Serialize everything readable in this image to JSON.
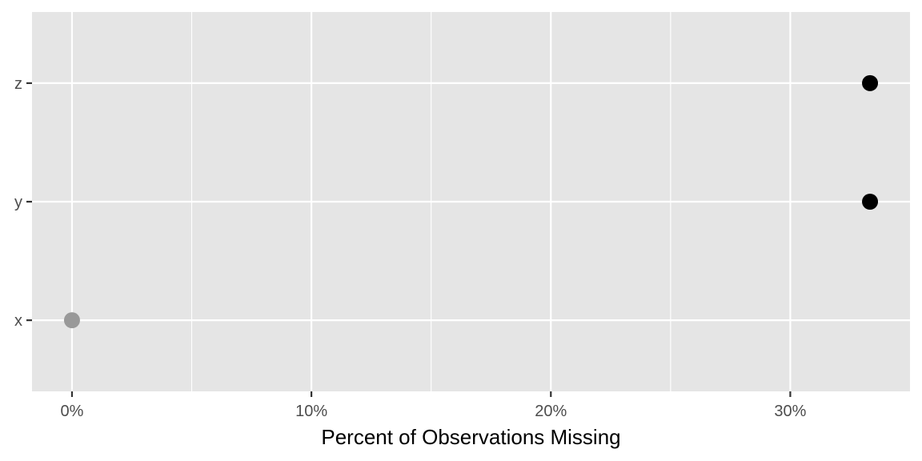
{
  "chart_data": {
    "type": "scatter",
    "title": "",
    "xlabel": "Percent of Observations Missing",
    "ylabel": "",
    "x_ticks": [
      0,
      10,
      20,
      30
    ],
    "x_tick_labels": [
      "0%",
      "10%",
      "20%",
      "30%"
    ],
    "xlim": [
      -1.67,
      35
    ],
    "categories": [
      "x",
      "y",
      "z"
    ],
    "grid": true,
    "legend": "none",
    "points": [
      {
        "category": "x",
        "value": 0,
        "color": "#999999"
      },
      {
        "category": "y",
        "value": 33.33,
        "color": "#000000"
      },
      {
        "category": "z",
        "value": 33.33,
        "color": "#000000"
      }
    ],
    "colors": {
      "panel_background": "#e5e5e5",
      "grid": "#ffffff",
      "tick_text": "#4d4d4d",
      "axis_title": "#000000"
    }
  }
}
